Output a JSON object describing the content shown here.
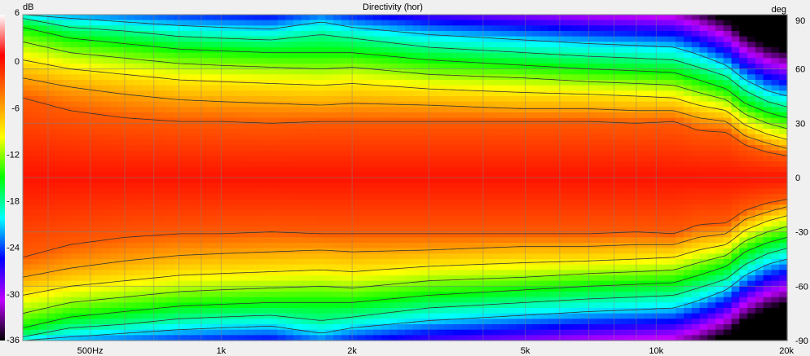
{
  "chart_data": {
    "type": "heatmap",
    "title": "Directivity (hor)",
    "left_axis": {
      "unit": "dB",
      "ticks": [
        "6",
        "0",
        "-6",
        "-12",
        "-18",
        "-24",
        "-30",
        "-36"
      ],
      "values": [
        6,
        0,
        -6,
        -12,
        -18,
        -24,
        -30,
        -36
      ],
      "range": [
        -36,
        6
      ]
    },
    "right_axis": {
      "unit": "deg",
      "ticks": [
        "90",
        "60",
        "30",
        "0",
        "-30",
        "-60",
        "-90"
      ],
      "values": [
        90,
        60,
        30,
        0,
        -30,
        -60,
        -90
      ],
      "range": [
        -90,
        90
      ]
    },
    "x_axis": {
      "scale": "log",
      "range_hz": [
        350,
        20000
      ],
      "ticks": [
        {
          "label": "500Hz",
          "hz": 500
        },
        {
          "label": "1k",
          "hz": 1000
        },
        {
          "label": "2k",
          "hz": 2000
        },
        {
          "label": "5k",
          "hz": 5000
        },
        {
          "label": "10k",
          "hz": 10000
        },
        {
          "label": "20k",
          "hz": 20000
        }
      ]
    },
    "contours_db": [
      -3,
      -6,
      -9,
      -12,
      -15,
      -18,
      -21
    ],
    "half_angle_deg": [
      {
        "hz": 350,
        "a": [
          44,
          55,
          65,
          75,
          83,
          88,
          90
        ]
      },
      {
        "hz": 450,
        "a": [
          37,
          50,
          60,
          69,
          77,
          83,
          88
        ]
      },
      {
        "hz": 600,
        "a": [
          33,
          46,
          57,
          66,
          74,
          81,
          86
        ]
      },
      {
        "hz": 800,
        "a": [
          31,
          43,
          54,
          63,
          71,
          78,
          84
        ]
      },
      {
        "hz": 1000,
        "a": [
          31,
          42,
          53,
          62,
          70,
          77,
          83
        ]
      },
      {
        "hz": 1300,
        "a": [
          30,
          41,
          52,
          61,
          69,
          76,
          82
        ]
      },
      {
        "hz": 1700,
        "a": [
          31,
          40,
          51,
          60,
          69,
          79,
          86
        ]
      },
      {
        "hz": 2000,
        "a": [
          31,
          41,
          52,
          61,
          69,
          77,
          83
        ]
      },
      {
        "hz": 3000,
        "a": [
          31,
          40,
          49,
          57,
          65,
          72,
          79
        ]
      },
      {
        "hz": 5000,
        "a": [
          31,
          38,
          47,
          55,
          62,
          69,
          76
        ]
      },
      {
        "hz": 7000,
        "a": [
          31,
          38,
          46,
          53,
          60,
          67,
          74
        ]
      },
      {
        "hz": 9000,
        "a": [
          30,
          37,
          45,
          52,
          59,
          66,
          73
        ]
      },
      {
        "hz": 11000,
        "a": [
          31,
          37,
          44,
          51,
          58,
          65,
          72
        ]
      },
      {
        "hz": 12500,
        "a": [
          26,
          33,
          40,
          47,
          54,
          61,
          68
        ]
      },
      {
        "hz": 14500,
        "a": [
          25,
          31,
          37,
          43,
          49,
          56,
          62
        ]
      },
      {
        "hz": 16000,
        "a": [
          18,
          23,
          29,
          35,
          41,
          48,
          54
        ]
      },
      {
        "hz": 18000,
        "a": [
          14,
          19,
          24,
          30,
          36,
          42,
          48
        ]
      },
      {
        "hz": 20000,
        "a": [
          12,
          16,
          21,
          27,
          33,
          39,
          45
        ]
      }
    ],
    "grid": true,
    "colormap": [
      "#ffffff",
      "#ff0000",
      "#ff8000",
      "#ffff00",
      "#00ff00",
      "#00ffff",
      "#0000ff",
      "#c000ff",
      "#000000"
    ]
  }
}
